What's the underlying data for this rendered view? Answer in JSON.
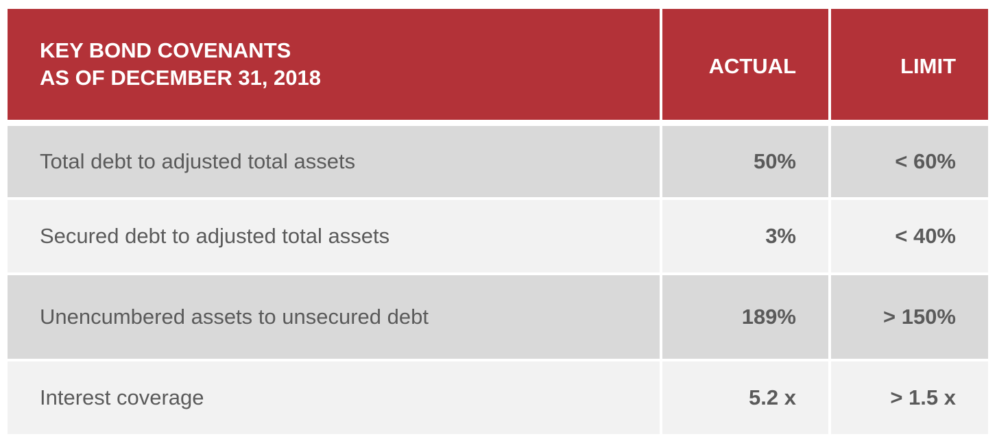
{
  "header": {
    "title_line1": "KEY BOND COVENANTS",
    "title_line2": "AS OF DECEMBER 31, 2018",
    "actual_label": "ACTUAL",
    "limit_label": "LIMIT"
  },
  "rows": [
    {
      "label": "Total debt to adjusted total assets",
      "actual": "50%",
      "limit": "< 60%"
    },
    {
      "label": "Secured debt to adjusted total assets",
      "actual": "3%",
      "limit": "< 40%"
    },
    {
      "label": "Unencumbered assets to unsecured debt",
      "actual": "189%",
      "limit": "> 150%"
    },
    {
      "label": "Interest coverage",
      "actual": "5.2 x",
      "limit": "> 1.5 x"
    }
  ],
  "colors": {
    "header_bg": "#b33238",
    "header_text": "#ffffff",
    "row_dark": "#d9d9d9",
    "row_light": "#f2f2f2",
    "body_text": "#5a5a5a"
  }
}
